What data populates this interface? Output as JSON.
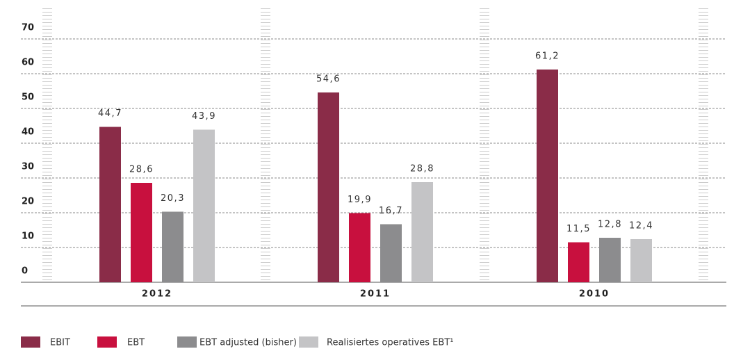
{
  "chart_data": {
    "type": "bar",
    "categories": [
      "2012",
      "2011",
      "2010"
    ],
    "series": [
      {
        "name": "EBIT",
        "color": "#8a2c48",
        "values": [
          44.7,
          54.6,
          61.2
        ],
        "value_labels": [
          "44,7",
          "54,6",
          "61,2"
        ]
      },
      {
        "name": "EBT",
        "color": "#c8103e",
        "values": [
          28.6,
          19.9,
          11.5
        ],
        "value_labels": [
          "28,6",
          "19,9",
          "11,5"
        ]
      },
      {
        "name": "EBT adjusted (bisher)",
        "color": "#8c8c8e",
        "values": [
          20.3,
          16.7,
          12.8
        ],
        "value_labels": [
          "20,3",
          "16,7",
          "12,8"
        ]
      },
      {
        "name": "Realisiertes operatives EBT¹",
        "color": "#c4c4c6",
        "values": [
          43.9,
          28.8,
          12.4
        ],
        "value_labels": [
          "43,9",
          "28,8",
          "12,4"
        ]
      }
    ],
    "ylim": [
      0,
      80
    ],
    "yticks": [
      0,
      10,
      20,
      30,
      40,
      50,
      60,
      70
    ],
    "grid": true
  }
}
